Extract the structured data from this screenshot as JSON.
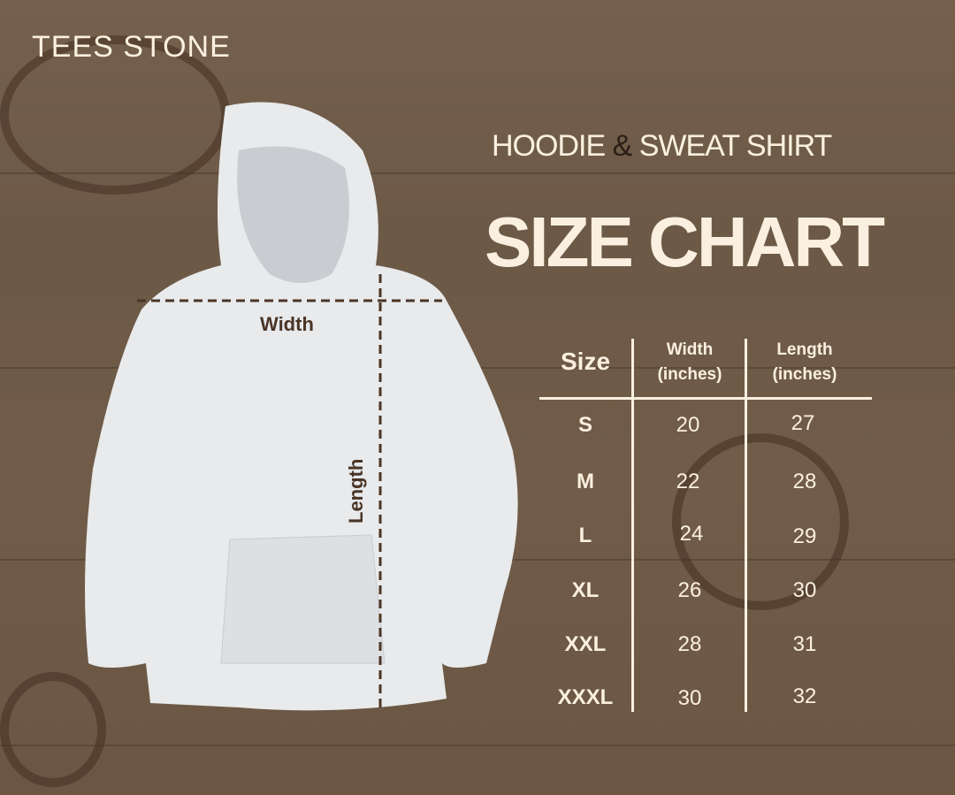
{
  "brand": "TEES STONE",
  "subtitle": {
    "part1": "HOODIE",
    "amp": "&",
    "part2": "SWEAT SHIRT"
  },
  "title": "SIZE CHART",
  "diagram": {
    "width_label": "Width",
    "length_label": "Length"
  },
  "table": {
    "headers": [
      {
        "line1": "Size",
        "line2": ""
      },
      {
        "line1": "Width",
        "line2": "(inches)"
      },
      {
        "line1": "Length",
        "line2": "(inches)"
      }
    ],
    "rows": [
      {
        "size": "S",
        "width": "20",
        "length": "27"
      },
      {
        "size": "M",
        "width": "22",
        "length": "28"
      },
      {
        "size": "L",
        "width": "24",
        "length": "29"
      },
      {
        "size": "XL",
        "width": "26",
        "length": "30"
      },
      {
        "size": "XXL",
        "width": "28",
        "length": "31"
      },
      {
        "size": "XXXL",
        "width": "30",
        "length": "32"
      }
    ]
  },
  "colors": {
    "background": "#6e5a47",
    "text": "#fbf0e0",
    "accent": "#2a1e16",
    "hoodie": "#e8eaec"
  }
}
